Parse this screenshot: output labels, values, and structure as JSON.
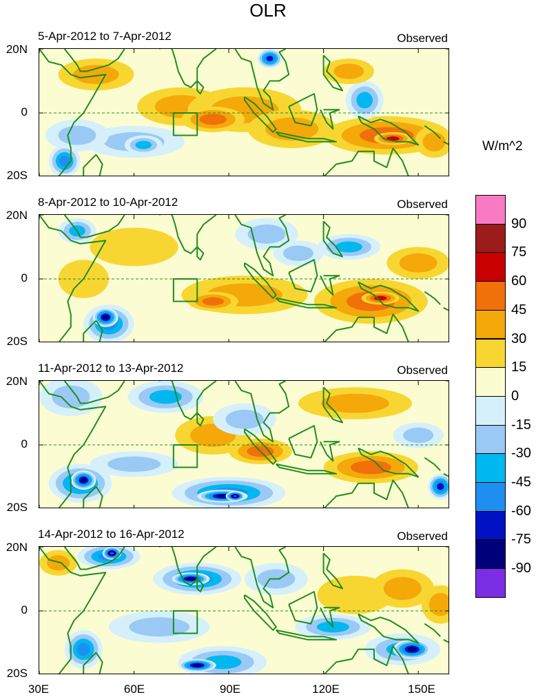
{
  "title": "OLR",
  "unit_label": "W/m^2",
  "panels": [
    {
      "period": "5-Apr-2012 to 7-Apr-2012",
      "tag": "Observed"
    },
    {
      "period": "8-Apr-2012 to 10-Apr-2012",
      "tag": "Observed"
    },
    {
      "period": "11-Apr-2012 to 13-Apr-2012",
      "tag": "Observed"
    },
    {
      "period": "14-Apr-2012 to 16-Apr-2012",
      "tag": "Observed"
    }
  ],
  "lat_labels": [
    "20N",
    "0",
    "20S"
  ],
  "lon_labels": [
    "30E",
    "60E",
    "90E",
    "120E",
    "150E"
  ],
  "colorbar": {
    "colors": [
      "#7b2ee6",
      "#00007a",
      "#0012c2",
      "#1e8ff0",
      "#00b7f0",
      "#9ac9f5",
      "#d5f0fb",
      "#fcfcd2",
      "#f8d632",
      "#f5a80a",
      "#f0700a",
      "#c80000",
      "#9c1c1c",
      "#f87ac4"
    ],
    "tick_labels": [
      "-90",
      "-75",
      "-60",
      "-45",
      "-30",
      "-15",
      "0",
      "15",
      "30",
      "45",
      "60",
      "75",
      "90"
    ]
  },
  "land_color": "#1e8c1e"
}
